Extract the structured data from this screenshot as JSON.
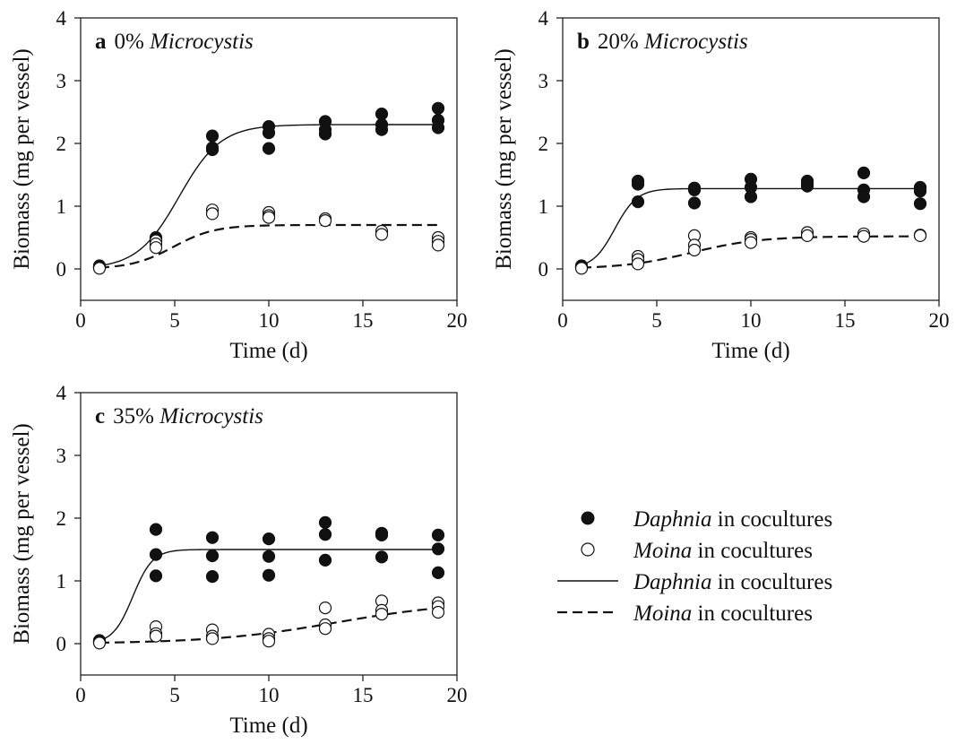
{
  "legend": [
    {
      "kind": "marker-filled",
      "species": "Daphnia",
      "rest": " in cocultures"
    },
    {
      "kind": "marker-open",
      "species": "Moina",
      "rest": " in cocultures"
    },
    {
      "kind": "line-solid",
      "species": "Daphnia",
      "rest": " in cocultures"
    },
    {
      "kind": "line-dashed",
      "species": "Moina",
      "rest": " in cocultures"
    }
  ],
  "chart_data": [
    {
      "type": "scatter",
      "panel_letter": "a",
      "title_prefix": "0% ",
      "title_italic": "Microcystis",
      "xlabel": "Time (d)",
      "ylabel": "Biomass (mg per vessel)",
      "xlim": [
        0,
        20
      ],
      "ylim": [
        -0.5,
        4
      ],
      "xticks": [
        0,
        5,
        10,
        15,
        20
      ],
      "yticks": [
        0,
        1,
        2,
        3,
        4
      ],
      "series": [
        {
          "name": "Daphnia in cocultures",
          "marker": "filled",
          "points": [
            [
              1,
              0.05
            ],
            [
              1,
              0.03
            ],
            [
              1,
              0.02
            ],
            [
              4,
              0.5
            ],
            [
              4,
              0.48
            ],
            [
              4,
              0.45
            ],
            [
              7,
              2.12
            ],
            [
              7,
              1.93
            ],
            [
              7,
              1.9
            ],
            [
              10,
              2.27
            ],
            [
              10,
              2.17
            ],
            [
              10,
              1.92
            ],
            [
              13,
              2.35
            ],
            [
              13,
              2.22
            ],
            [
              13,
              2.15
            ],
            [
              16,
              2.47
            ],
            [
              16,
              2.3
            ],
            [
              16,
              2.22
            ],
            [
              19,
              2.56
            ],
            [
              19,
              2.37
            ],
            [
              19,
              2.25
            ]
          ]
        },
        {
          "name": "Moina in cocultures",
          "marker": "open",
          "points": [
            [
              1,
              0.03
            ],
            [
              1,
              0.02
            ],
            [
              1,
              0.01
            ],
            [
              4,
              0.45
            ],
            [
              4,
              0.4
            ],
            [
              4,
              0.34
            ],
            [
              7,
              0.94
            ],
            [
              7,
              0.88
            ],
            [
              10,
              0.9
            ],
            [
              10,
              0.85
            ],
            [
              10,
              0.82
            ],
            [
              13,
              0.8
            ],
            [
              13,
              0.77
            ],
            [
              16,
              0.6
            ],
            [
              16,
              0.55
            ],
            [
              19,
              0.5
            ],
            [
              19,
              0.44
            ],
            [
              19,
              0.38
            ]
          ]
        }
      ],
      "fits": [
        {
          "name": "Daphnia in cocultures",
          "style": "solid",
          "K": 2.3,
          "r": 0.9,
          "N0": 0.05,
          "t0": 1
        },
        {
          "name": "Moina in cocultures",
          "style": "dashed",
          "K": 0.7,
          "r": 0.9,
          "N0": 0.02,
          "t0": 1
        }
      ]
    },
    {
      "type": "scatter",
      "panel_letter": "b",
      "title_prefix": "20% ",
      "title_italic": "Microcystis",
      "xlabel": "Time (d)",
      "ylabel": "Biomass (mg per vessel)",
      "xlim": [
        0,
        20
      ],
      "ylim": [
        -0.5,
        4
      ],
      "xticks": [
        0,
        5,
        10,
        15,
        20
      ],
      "yticks": [
        0,
        1,
        2,
        3,
        4
      ],
      "series": [
        {
          "name": "Daphnia in cocultures",
          "marker": "filled",
          "points": [
            [
              1,
              0.05
            ],
            [
              1,
              0.04
            ],
            [
              1,
              0.03
            ],
            [
              4,
              1.4
            ],
            [
              4,
              1.35
            ],
            [
              4,
              1.07
            ],
            [
              7,
              1.29
            ],
            [
              7,
              1.26
            ],
            [
              7,
              1.05
            ],
            [
              10,
              1.43
            ],
            [
              10,
              1.3
            ],
            [
              10,
              1.15
            ],
            [
              13,
              1.4
            ],
            [
              13,
              1.36
            ],
            [
              13,
              1.32
            ],
            [
              16,
              1.53
            ],
            [
              16,
              1.26
            ],
            [
              16,
              1.15
            ],
            [
              19,
              1.3
            ],
            [
              19,
              1.24
            ],
            [
              19,
              1.04
            ]
          ]
        },
        {
          "name": "Moina in cocultures",
          "marker": "open",
          "points": [
            [
              1,
              0.03
            ],
            [
              1,
              0.02
            ],
            [
              1,
              0.01
            ],
            [
              4,
              0.2
            ],
            [
              4,
              0.15
            ],
            [
              4,
              0.08
            ],
            [
              7,
              0.53
            ],
            [
              7,
              0.38
            ],
            [
              7,
              0.3
            ],
            [
              10,
              0.5
            ],
            [
              10,
              0.47
            ],
            [
              10,
              0.42
            ],
            [
              13,
              0.58
            ],
            [
              13,
              0.53
            ],
            [
              16,
              0.56
            ],
            [
              16,
              0.52
            ],
            [
              19,
              0.54
            ],
            [
              19,
              0.53
            ]
          ]
        }
      ],
      "fits": [
        {
          "name": "Daphnia in cocultures",
          "style": "solid",
          "K": 1.28,
          "r": 1.7,
          "N0": 0.06,
          "t0": 1
        },
        {
          "name": "Moina in cocultures",
          "style": "dashed",
          "K": 0.52,
          "r": 0.55,
          "N0": 0.02,
          "t0": 1
        }
      ]
    },
    {
      "type": "scatter",
      "panel_letter": "c",
      "title_prefix": "35% ",
      "title_italic": "Microcystis",
      "xlabel": "Time (d)",
      "ylabel": "Biomass (mg per vessel)",
      "xlim": [
        0,
        20
      ],
      "ylim": [
        -0.5,
        4
      ],
      "xticks": [
        0,
        5,
        10,
        15,
        20
      ],
      "yticks": [
        0,
        1,
        2,
        3,
        4
      ],
      "series": [
        {
          "name": "Daphnia in cocultures",
          "marker": "filled",
          "points": [
            [
              1,
              0.05
            ],
            [
              1,
              0.04
            ],
            [
              1,
              0.03
            ],
            [
              4,
              1.82
            ],
            [
              4,
              1.42
            ],
            [
              4,
              1.08
            ],
            [
              7,
              1.69
            ],
            [
              7,
              1.4
            ],
            [
              7,
              1.07
            ],
            [
              10,
              1.67
            ],
            [
              10,
              1.39
            ],
            [
              10,
              1.09
            ],
            [
              13,
              1.93
            ],
            [
              13,
              1.74
            ],
            [
              13,
              1.33
            ],
            [
              16,
              1.76
            ],
            [
              16,
              1.73
            ],
            [
              16,
              1.38
            ],
            [
              19,
              1.73
            ],
            [
              19,
              1.51
            ],
            [
              19,
              1.13
            ]
          ]
        },
        {
          "name": "Moina in cocultures",
          "marker": "open",
          "points": [
            [
              1,
              0.03
            ],
            [
              1,
              0.02
            ],
            [
              1,
              0.01
            ],
            [
              4,
              0.27
            ],
            [
              4,
              0.16
            ],
            [
              4,
              0.12
            ],
            [
              7,
              0.22
            ],
            [
              7,
              0.12
            ],
            [
              7,
              0.08
            ],
            [
              10,
              0.15
            ],
            [
              10,
              0.08
            ],
            [
              10,
              0.04
            ],
            [
              13,
              0.57
            ],
            [
              13,
              0.3
            ],
            [
              13,
              0.24
            ],
            [
              16,
              0.68
            ],
            [
              16,
              0.53
            ],
            [
              16,
              0.47
            ],
            [
              19,
              0.65
            ],
            [
              19,
              0.59
            ],
            [
              19,
              0.5
            ]
          ]
        }
      ],
      "fits": [
        {
          "name": "Daphnia in cocultures",
          "style": "solid",
          "K": 1.5,
          "r": 1.9,
          "N0": 0.05,
          "t0": 1
        },
        {
          "name": "Moina in cocultures",
          "style": "dashed",
          "K": 0.68,
          "r": 0.3,
          "N0": 0.015,
          "t0": 1
        }
      ]
    }
  ]
}
